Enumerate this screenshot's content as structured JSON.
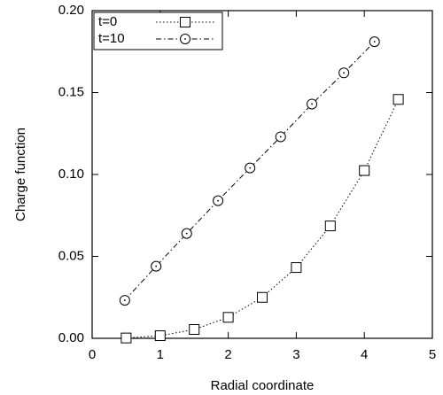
{
  "chart_data": {
    "type": "line",
    "x_label": "Radial coordinate",
    "y_label": "Charge function",
    "xlim": [
      0,
      5
    ],
    "ylim": [
      0,
      0.2
    ],
    "xticks": [
      0,
      1,
      2,
      3,
      4,
      5
    ],
    "yticks": [
      {
        "value": 0,
        "label": "0.00"
      },
      {
        "value": 0.05,
        "label": "0.05"
      },
      {
        "value": 0.1,
        "label": "0.10"
      },
      {
        "value": 0.15,
        "label": "0.15"
      },
      {
        "value": 0.2,
        "label": "0.20"
      }
    ],
    "legend": "upper left",
    "series": [
      {
        "name": "t=0",
        "color": "#000000",
        "marker": "square",
        "dash": "dotted",
        "x": [
          0.5,
          1,
          1.5,
          2,
          2.5,
          3,
          3.5,
          4,
          4.5
        ],
        "values": [
          0.0002,
          0.0016,
          0.0054,
          0.0128,
          0.025,
          0.0432,
          0.0686,
          0.1024,
          0.1458
        ]
      },
      {
        "name": "t=10",
        "color": "#000000",
        "marker": "circle",
        "dash": "dashdot",
        "x": [
          0.48,
          0.94,
          1.39,
          1.85,
          2.32,
          2.77,
          3.23,
          3.7,
          4.15
        ],
        "values": [
          0.0232,
          0.044,
          0.064,
          0.084,
          0.104,
          0.123,
          0.143,
          0.162,
          0.181
        ]
      }
    ]
  }
}
